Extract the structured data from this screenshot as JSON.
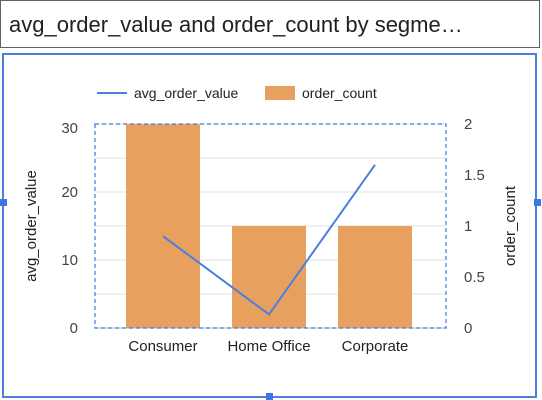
{
  "chart_data": {
    "type": "bar",
    "title": "avg_order_value and order_count by segme…",
    "categories": [
      "Consumer",
      "Home Office",
      "Corporate"
    ],
    "series": [
      {
        "name": "order_count",
        "kind": "bar",
        "axis": "right",
        "values": [
          2,
          1,
          1
        ],
        "color": "#e8a05f"
      },
      {
        "name": "avg_order_value",
        "kind": "line",
        "axis": "left",
        "values": [
          13.5,
          2.0,
          24.0
        ],
        "color": "#4a7fe0"
      }
    ],
    "y_left": {
      "label": "avg_order_value",
      "lim": [
        0,
        30
      ],
      "ticks": [
        "0",
        "10",
        "20",
        "30"
      ]
    },
    "y_right": {
      "label": "order_count",
      "lim": [
        0,
        2
      ],
      "ticks": [
        "0",
        "0.5",
        "1",
        "1.5",
        "2"
      ]
    },
    "grid": true,
    "legend_position": "top",
    "legend": [
      "avg_order_value",
      "order_count"
    ]
  }
}
